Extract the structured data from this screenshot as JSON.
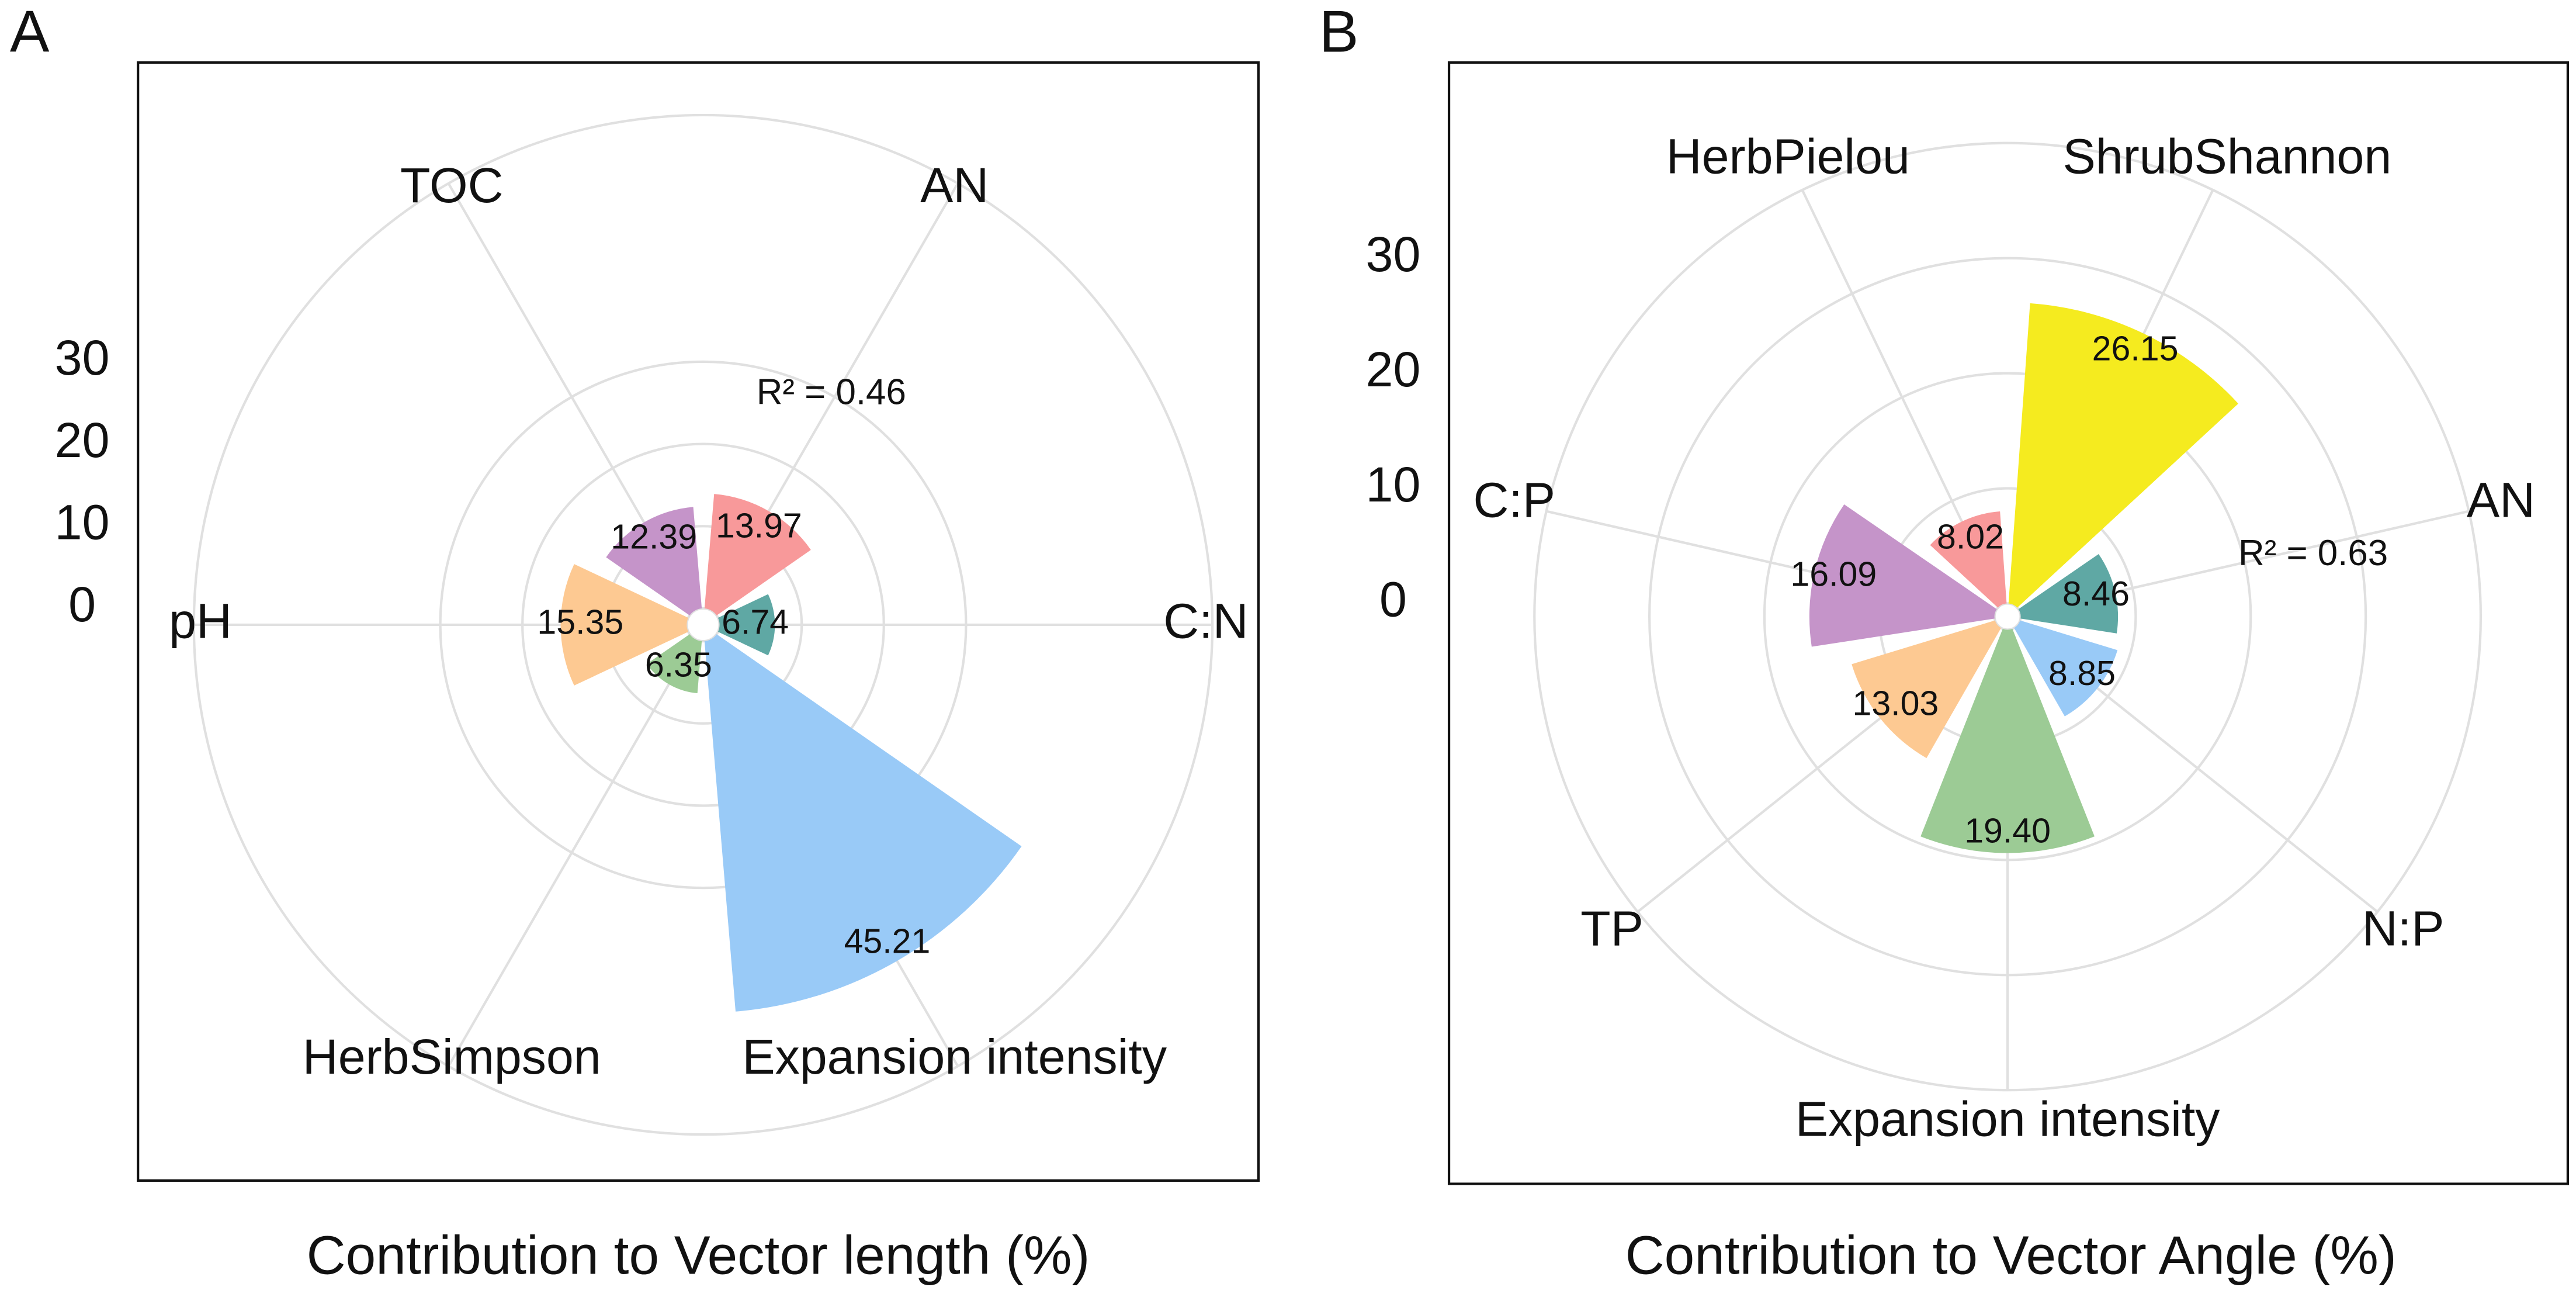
{
  "chart_data": [
    {
      "type": "rose",
      "panel": "A",
      "xlabel": "Contribution to Vector length (%)",
      "annotation": "R² = 0.46",
      "categories": [
        "AN",
        "C:N",
        "Expansion intensity",
        "HerbSimpson",
        "pH",
        "TOC"
      ],
      "values": [
        13.97,
        6.74,
        45.21,
        6.35,
        15.35,
        12.39
      ],
      "value_labels": [
        "13.97",
        "6.74",
        "45.21",
        "6.35",
        "15.35",
        "12.39"
      ],
      "colors": [
        "#f8999a",
        "#5fa8a4",
        "#99caf7",
        "#9ccb95",
        "#fdc992",
        "#c594c9"
      ],
      "ylim": [
        0,
        60
      ],
      "yticks": [
        0,
        10,
        20,
        30
      ],
      "grid": true
    },
    {
      "type": "rose",
      "panel": "B",
      "xlabel": "Contribution to Vector Angle (%)",
      "annotation": "R² = 0.63",
      "categories": [
        "ShrubShannon",
        "AN",
        "N:P",
        "Expansion intensity",
        "TP",
        "C:P",
        "HerbPielou"
      ],
      "values": [
        26.15,
        8.46,
        8.85,
        19.4,
        13.03,
        16.09,
        8.02
      ],
      "value_labels": [
        "26.15",
        "8.46",
        "8.85",
        "19.40",
        "13.03",
        "16.09",
        "8.02"
      ],
      "colors": [
        "#f5eb1f",
        "#5fa8a4",
        "#99caf7",
        "#9ccb95",
        "#fdc992",
        "#c594c9",
        "#f8999a"
      ],
      "ylim": [
        0,
        40
      ],
      "yticks": [
        0,
        10,
        20,
        30
      ],
      "grid": true
    }
  ]
}
